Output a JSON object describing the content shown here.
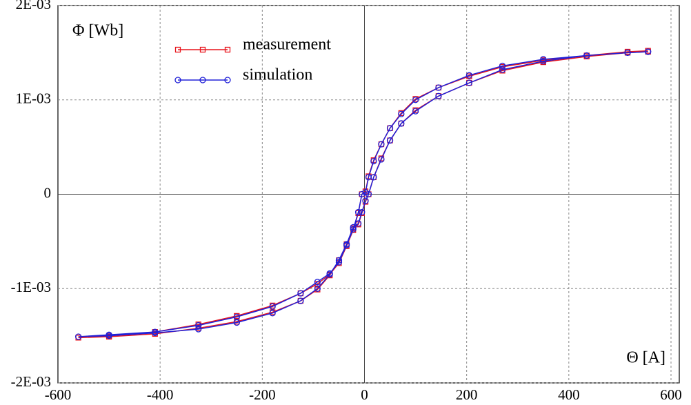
{
  "chart_data": {
    "type": "line",
    "y_label": "Φ [Wb]",
    "x_label": "Θ [A]",
    "x": [
      555,
      515,
      435,
      350,
      270,
      205,
      145,
      100,
      72,
      50,
      33,
      18,
      8,
      2,
      -5,
      -12,
      -22,
      -35,
      -50,
      -68,
      -92,
      -125,
      -180,
      -250,
      -325,
      -410,
      -500,
      -560,
      -500,
      -410,
      -325,
      -250,
      -180,
      -125,
      -92,
      -68,
      -50,
      -35,
      -22,
      -12,
      -5,
      2,
      8,
      18,
      33,
      50,
      72,
      100,
      145,
      205,
      270,
      350,
      435,
      515,
      555
    ],
    "series": [
      {
        "name": "measurement",
        "color": "#e8141c",
        "marker": "square",
        "values": [
          0.00152,
          0.00151,
          0.00147,
          0.00142,
          0.00135,
          0.00125,
          0.00113,
          0.00101,
          0.00086,
          0.0007,
          0.00053,
          0.00036,
          0.00019,
          3e-05,
          0.0,
          -0.0002,
          -0.00038,
          -0.00055,
          -0.00073,
          -0.00085,
          -0.00095,
          -0.00105,
          -0.00118,
          -0.00129,
          -0.00138,
          -0.00146,
          -0.0015,
          -0.00152,
          -0.00151,
          -0.00148,
          -0.00142,
          -0.00135,
          -0.00125,
          -0.00113,
          -0.00101,
          -0.00086,
          -0.0007,
          -0.00053,
          -0.00036,
          -0.00032,
          -0.0002,
          -8e-05,
          0.0,
          0.00018,
          0.00038,
          0.00057,
          0.00075,
          0.00089,
          0.00104,
          0.00118,
          0.00131,
          0.0014,
          0.00146,
          0.0015,
          0.00151
        ]
      },
      {
        "name": "simulation",
        "color": "#2020d8",
        "marker": "circle",
        "values": [
          0.00151,
          0.0015,
          0.00147,
          0.00143,
          0.00136,
          0.00126,
          0.00113,
          0.001,
          0.00085,
          0.0007,
          0.00053,
          0.00035,
          0.00018,
          2e-05,
          0.0,
          -0.00019,
          -0.00037,
          -0.00054,
          -0.00072,
          -0.00084,
          -0.00093,
          -0.00105,
          -0.00119,
          -0.0013,
          -0.00139,
          -0.00146,
          -0.00149,
          -0.00151,
          -0.0015,
          -0.00147,
          -0.00143,
          -0.00136,
          -0.00126,
          -0.00113,
          -0.001,
          -0.00085,
          -0.0007,
          -0.00053,
          -0.00035,
          -0.00031,
          -0.00019,
          -7e-05,
          0.0,
          0.00018,
          0.00037,
          0.00057,
          0.00075,
          0.00088,
          0.00104,
          0.00118,
          0.00132,
          0.00141,
          0.00147,
          0.0015,
          0.00151
        ]
      }
    ],
    "xlim": [
      -600,
      600
    ],
    "ylim": [
      -0.002,
      0.002
    ],
    "xticks": [
      -600,
      -400,
      -200,
      0,
      200,
      400,
      600
    ],
    "yticks": [
      {
        "value": -0.002,
        "label": "-2E-03"
      },
      {
        "value": -0.001,
        "label": "-1E-03"
      },
      0,
      {
        "value": 0.001,
        "label": "1E-03"
      },
      {
        "value": 0.002,
        "label": "2E-03"
      }
    ],
    "grid": true,
    "legend": "upper left"
  }
}
